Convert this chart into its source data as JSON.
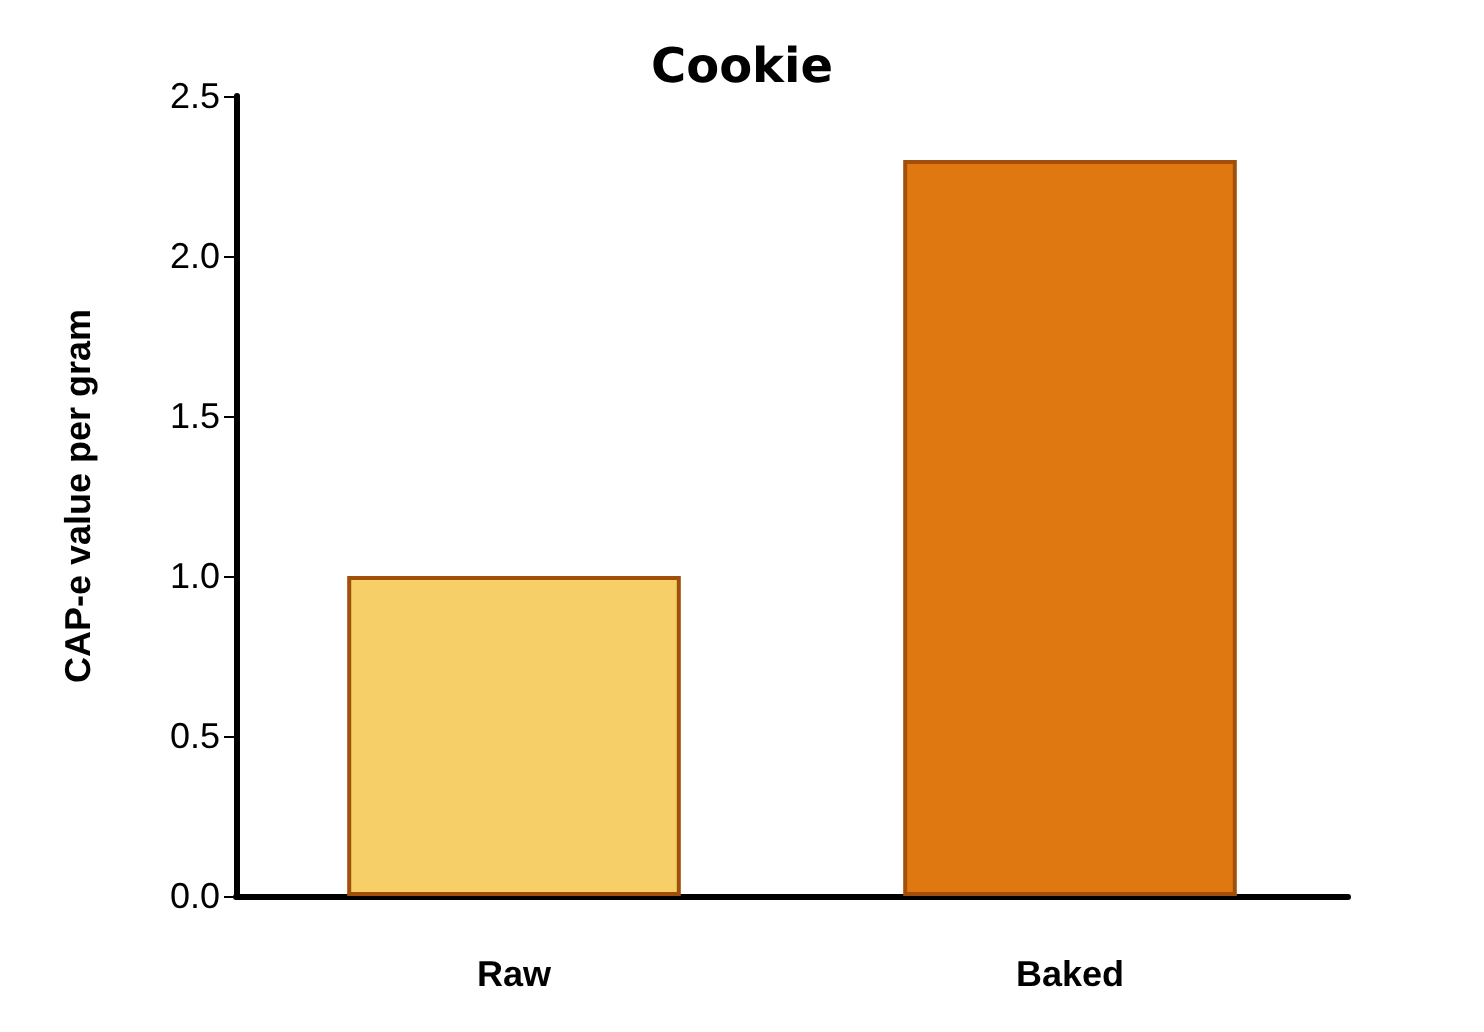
{
  "chart_data": {
    "type": "bar",
    "title": "Cookie",
    "ylabel": "CAP-e value per gram",
    "categories": [
      "Raw",
      "Baked"
    ],
    "values": [
      1.0,
      2.3
    ],
    "colors": [
      "#f7cf68",
      "#e07812"
    ],
    "ylim": [
      0,
      2.5
    ],
    "yticks": [
      {
        "value": 0,
        "label": "0.0"
      },
      {
        "value": 0.5,
        "label": "0.5"
      },
      {
        "value": 1,
        "label": "1.0"
      },
      {
        "value": 1.5,
        "label": "1.5"
      },
      {
        "value": 2,
        "label": "2.0"
      },
      {
        "value": 2.5,
        "label": "2.5"
      }
    ],
    "grid": false
  }
}
